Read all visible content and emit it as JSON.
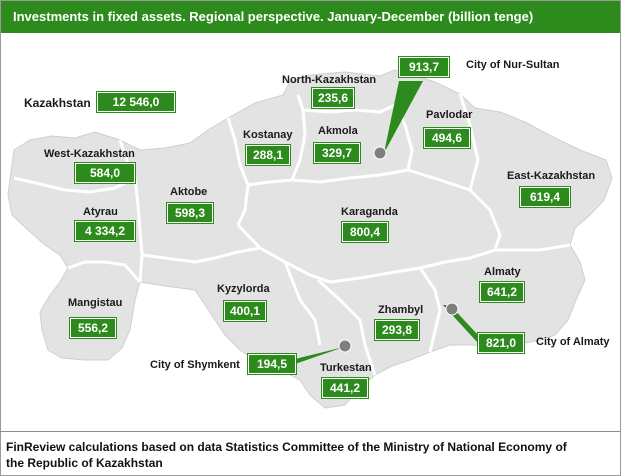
{
  "title": "Investments  in fixed assets.  Regional perspective. January-December (billion tenge)",
  "total": {
    "label": "Kazakhstan",
    "value": "12 546,0"
  },
  "regions": {
    "west_kazakhstan": {
      "label": "West-Kazakhstan",
      "value": "584,0"
    },
    "atyrau": {
      "label": "Atyrau",
      "value": "4 334,2"
    },
    "mangistau": {
      "label": "Mangistau",
      "value": "556,2"
    },
    "aktobe": {
      "label": "Aktobe",
      "value": "598,3"
    },
    "kostanay": {
      "label": "Kostanay",
      "value": "288,1"
    },
    "north_kazakhstan": {
      "label": "North-Kazakhstan",
      "value": "235,6"
    },
    "akmola": {
      "label": "Akmola",
      "value": "329,7"
    },
    "pavlodar": {
      "label": "Pavlodar",
      "value": "494,6"
    },
    "east_kazakhstan": {
      "label": "East-Kazakhstan",
      "value": "619,4"
    },
    "karaganda": {
      "label": "Karaganda",
      "value": "800,4"
    },
    "kyzylorda": {
      "label": "Kyzylorda",
      "value": "400,1"
    },
    "almaty": {
      "label": "Almaty",
      "value": "641,2"
    },
    "zhambyl": {
      "label": "Zhambyl",
      "value": "293,8"
    },
    "turkestan": {
      "label": "Turkestan",
      "value": "441,2"
    }
  },
  "cities": {
    "nur_sultan": {
      "label": "City of Nur-Sultan",
      "value": "913,7"
    },
    "almaty_city": {
      "label": "City of Almaty",
      "value": "821,0"
    },
    "shymkent": {
      "label": "City of Shymkent",
      "value": "194,5"
    }
  },
  "footer": "FinReview calculations based on data Statistics Committee of the Ministry of National Economy of the Republic of Kazakhstan",
  "colors": {
    "accent": "#2d8a1c",
    "land": "#e3e3e3",
    "border": "#ffffff",
    "city_dot": "#7f7f7f"
  }
}
